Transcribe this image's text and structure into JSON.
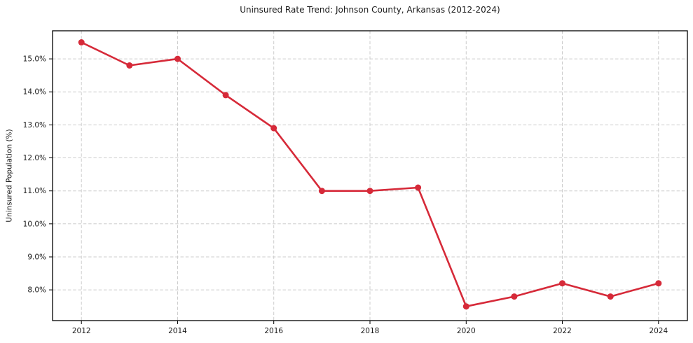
{
  "chart_data": {
    "type": "line",
    "title": "Uninsured Rate Trend: Johnson County, Arkansas (2012-2024)",
    "xlabel": "",
    "ylabel": "Uninsured Population (%)",
    "x": [
      2012,
      2013,
      2014,
      2015,
      2016,
      2017,
      2018,
      2019,
      2020,
      2021,
      2022,
      2023,
      2024
    ],
    "series": [
      {
        "values": [
          15.5,
          14.8,
          15.0,
          13.9,
          12.9,
          11.0,
          11.0,
          11.1,
          7.5,
          7.8,
          8.2,
          7.8,
          8.2
        ],
        "color": "#d62a39",
        "marker": "circle",
        "line_width": 2.6,
        "marker_radius": 4.5
      }
    ],
    "x_ticks": [
      2012,
      2014,
      2016,
      2018,
      2020,
      2022,
      2024
    ],
    "x_tick_labels": [
      "2012",
      "2014",
      "2016",
      "2018",
      "2020",
      "2022",
      "2024"
    ],
    "y_ticks": [
      8.0,
      9.0,
      10.0,
      11.0,
      12.0,
      13.0,
      14.0,
      15.0
    ],
    "y_tick_labels": [
      "8.0%",
      "9.0%",
      "10.0%",
      "11.0%",
      "12.0%",
      "13.0%",
      "14.0%",
      "15.0%"
    ],
    "xlim": [
      2011.4,
      2024.6
    ],
    "ylim": [
      7.07,
      15.85
    ],
    "grid": true,
    "grid_color": "#cccccc",
    "axis_color": "#000000",
    "text_color": "#1a1a1a",
    "background": "#ffffff",
    "legend_position": "none"
  }
}
